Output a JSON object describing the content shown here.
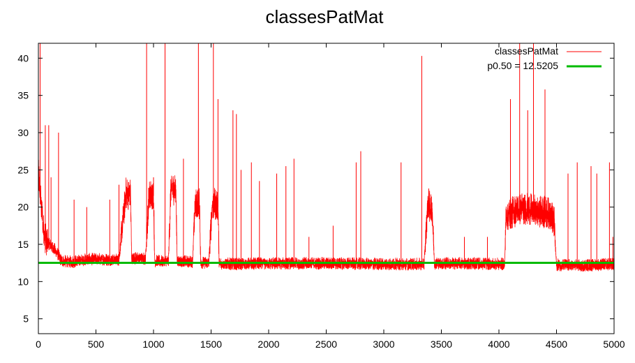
{
  "chart_data": {
    "type": "line",
    "title": "classesPatMat",
    "xlabel": "",
    "ylabel": "",
    "xlim": [
      0,
      5000
    ],
    "ylim": [
      3,
      42
    ],
    "x_ticks": [
      0,
      500,
      1000,
      1500,
      2000,
      2500,
      3000,
      3500,
      4000,
      4500,
      5000
    ],
    "y_ticks": [
      5,
      10,
      15,
      20,
      25,
      30,
      35,
      40
    ],
    "grid": false,
    "legend_position": "top-right",
    "series": [
      {
        "name": "classesPatMat",
        "color": "#ff0000",
        "style": "line",
        "note_points": "approximate baseline profile (x, y) read from the chart; drawn with dense spiky noise",
        "points": [
          [
            0,
            24
          ],
          [
            15,
            22
          ],
          [
            30,
            19
          ],
          [
            45,
            16.5
          ],
          [
            60,
            15.5
          ],
          [
            80,
            15
          ],
          [
            100,
            14.8
          ],
          [
            140,
            14.2
          ],
          [
            170,
            13.5
          ],
          [
            200,
            12.6
          ],
          [
            300,
            12.5
          ],
          [
            400,
            12.8
          ],
          [
            500,
            12.9
          ],
          [
            600,
            12.8
          ],
          [
            700,
            12.8
          ],
          [
            760,
            21.5
          ],
          [
            800,
            21.3
          ],
          [
            810,
            13
          ],
          [
            900,
            13
          ],
          [
            930,
            12.9
          ],
          [
            960,
            21
          ],
          [
            1000,
            21.5
          ],
          [
            1010,
            12.6
          ],
          [
            1100,
            12.6
          ],
          [
            1130,
            12.6
          ],
          [
            1150,
            22
          ],
          [
            1195,
            22
          ],
          [
            1205,
            12.6
          ],
          [
            1300,
            12.5
          ],
          [
            1340,
            12.5
          ],
          [
            1360,
            20
          ],
          [
            1400,
            20
          ],
          [
            1410,
            12.4
          ],
          [
            1480,
            12.4
          ],
          [
            1510,
            20
          ],
          [
            1560,
            20
          ],
          [
            1570,
            12.3
          ],
          [
            1700,
            12.2
          ],
          [
            2000,
            12.3
          ],
          [
            2500,
            12.3
          ],
          [
            3000,
            12.2
          ],
          [
            3350,
            12.2
          ],
          [
            3380,
            19.8
          ],
          [
            3420,
            19.5
          ],
          [
            3440,
            12.3
          ],
          [
            3700,
            12.3
          ],
          [
            4000,
            12.2
          ],
          [
            4050,
            12.2
          ],
          [
            4060,
            18.5
          ],
          [
            4200,
            19.5
          ],
          [
            4300,
            19.2
          ],
          [
            4450,
            18.8
          ],
          [
            4480,
            17.5
          ],
          [
            4500,
            12.1
          ],
          [
            4700,
            12.0
          ],
          [
            5000,
            12.2
          ]
        ],
        "spikes": [
          [
            15,
            42
          ],
          [
            60,
            31
          ],
          [
            90,
            31
          ],
          [
            110,
            24
          ],
          [
            175,
            30
          ],
          [
            310,
            21
          ],
          [
            420,
            20
          ],
          [
            620,
            21
          ],
          [
            700,
            23
          ],
          [
            940,
            42
          ],
          [
            1000,
            24
          ],
          [
            1100,
            42
          ],
          [
            1180,
            23
          ],
          [
            1260,
            26.5
          ],
          [
            1390,
            42
          ],
          [
            1520,
            42
          ],
          [
            1560,
            34.5
          ],
          [
            1690,
            33
          ],
          [
            1720,
            32.5
          ],
          [
            1760,
            25
          ],
          [
            1850,
            26
          ],
          [
            1920,
            23.5
          ],
          [
            2070,
            24.5
          ],
          [
            2150,
            25.5
          ],
          [
            2220,
            26.5
          ],
          [
            2350,
            16
          ],
          [
            2560,
            17.5
          ],
          [
            2760,
            26
          ],
          [
            2800,
            27.5
          ],
          [
            3150,
            26
          ],
          [
            3330,
            40.3
          ],
          [
            3390,
            22.5
          ],
          [
            3700,
            16
          ],
          [
            3900,
            16
          ],
          [
            4100,
            34.5
          ],
          [
            4180,
            42
          ],
          [
            4250,
            33
          ],
          [
            4300,
            42
          ],
          [
            4400,
            35.8
          ],
          [
            4600,
            24.5
          ],
          [
            4680,
            26
          ],
          [
            4800,
            25.5
          ],
          [
            4850,
            24.5
          ],
          [
            4960,
            26
          ],
          [
            4990,
            16
          ]
        ]
      },
      {
        "name": "p0.50 = 12.5205",
        "color": "#00bb00",
        "style": "horizontal",
        "y": 12.5205
      }
    ]
  }
}
